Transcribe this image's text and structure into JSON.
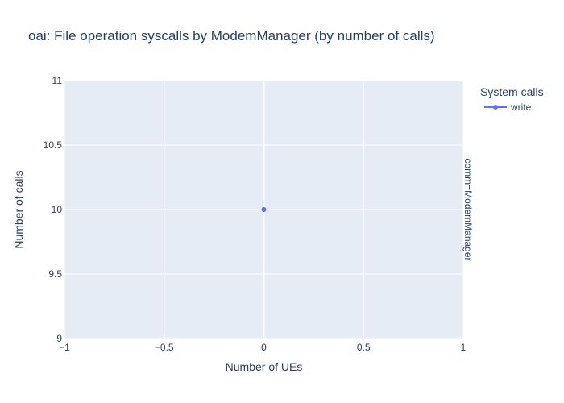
{
  "chart_data": {
    "type": "scatter",
    "title": "oai: File operation syscalls by ModemManager (by number of calls)",
    "xlabel": "Number of UEs",
    "ylabel": "Number of calls",
    "xlim": [
      -1,
      1
    ],
    "ylim": [
      9,
      11
    ],
    "x_ticks": [
      -1,
      -0.5,
      0,
      0.5,
      1
    ],
    "x_tick_labels": [
      "−1",
      "−0.5",
      "0",
      "0.5",
      "1"
    ],
    "y_ticks": [
      9,
      9.5,
      10,
      10.5,
      11
    ],
    "y_tick_labels": [
      "9",
      "9.5",
      "10",
      "10.5",
      "11"
    ],
    "grid": true,
    "legend_title": "System calls",
    "legend_position": "top-right",
    "facet_label": "comm=ModemManager",
    "series": [
      {
        "name": "write",
        "color": "#636efa",
        "mode": "lines+markers",
        "points": [
          {
            "x": 0,
            "y": 10
          }
        ]
      }
    ],
    "colors": {
      "plot_background": "#e5ecf6",
      "grid": "#ffffff",
      "text": "#2a3f5f"
    }
  }
}
